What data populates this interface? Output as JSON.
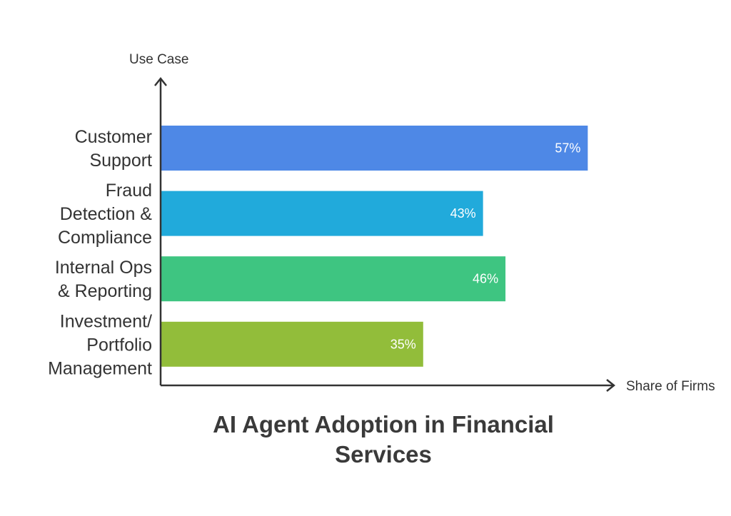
{
  "chart_data": {
    "type": "bar",
    "orientation": "horizontal",
    "title": [
      "AI Agent Adoption in Financial",
      "Services"
    ],
    "ylabel": "Use Case",
    "xlabel": "Share of Firms",
    "categories": [
      [
        "Customer",
        "Support"
      ],
      [
        "Fraud",
        "Detection &",
        "Compliance"
      ],
      [
        "Internal Ops",
        "& Reporting"
      ],
      [
        "Investment/",
        "Portfolio",
        "Management"
      ]
    ],
    "values": [
      57,
      43,
      46,
      35
    ],
    "value_labels": [
      "57%",
      "43%",
      "46%",
      "35%"
    ],
    "colors": [
      "#4e88e6",
      "#21aadb",
      "#3ec581",
      "#92bd3a"
    ],
    "xlim": [
      0,
      60
    ],
    "grid": false,
    "legend": "none"
  }
}
